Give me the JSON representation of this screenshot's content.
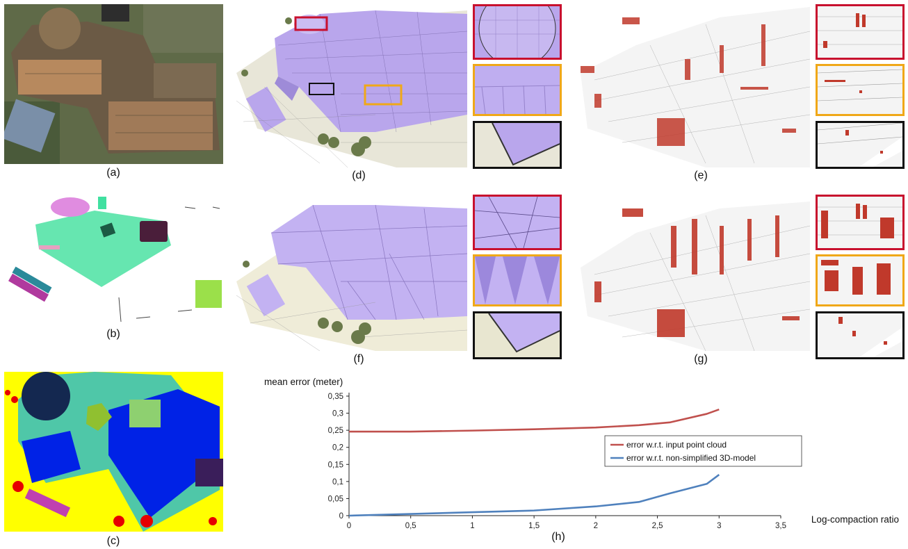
{
  "captions": {
    "a": "(a)",
    "b": "(b)",
    "c": "(c)",
    "d": "(d)",
    "e": "(e)",
    "f": "(f)",
    "g": "(g)",
    "h": "(h)"
  },
  "colors": {
    "roof_mesh": "#b9a6ec",
    "error_points": "#c0392b",
    "inset_red": "#c8102e",
    "inset_orange": "#f0a818",
    "inset_black": "#111111",
    "series_input": "#c0504d",
    "series_nonsimplified": "#4f81bd"
  },
  "chart_data": {
    "type": "line",
    "title": "",
    "ylabel": "mean error (meter)",
    "xlabel": "Log-compaction ratio",
    "xlim": [
      0,
      3.5
    ],
    "ylim": [
      0,
      0.35
    ],
    "x_ticks": [
      "0",
      "0,5",
      "1",
      "1,5",
      "2",
      "2,5",
      "3",
      "3,5"
    ],
    "y_ticks": [
      "0",
      "0,05",
      "0,1",
      "0,15",
      "0,2",
      "0,25",
      "0,3",
      "0,35"
    ],
    "legend_position": "center-right",
    "grid": false,
    "series": [
      {
        "name": "error w.r.t. input point cloud",
        "color": "#c0504d",
        "x": [
          0,
          0.5,
          1,
          1.5,
          2,
          2.35,
          2.6,
          2.9,
          3.0
        ],
        "y": [
          0.246,
          0.246,
          0.249,
          0.253,
          0.258,
          0.265,
          0.273,
          0.298,
          0.311
        ]
      },
      {
        "name": "error w.r.t. non-simplified 3D-model",
        "color": "#4f81bd",
        "x": [
          0,
          0.5,
          1,
          1.5,
          2,
          2.35,
          2.6,
          2.9,
          3.0
        ],
        "y": [
          0,
          0.005,
          0.01,
          0.015,
          0.027,
          0.04,
          0.065,
          0.093,
          0.12
        ]
      }
    ]
  }
}
